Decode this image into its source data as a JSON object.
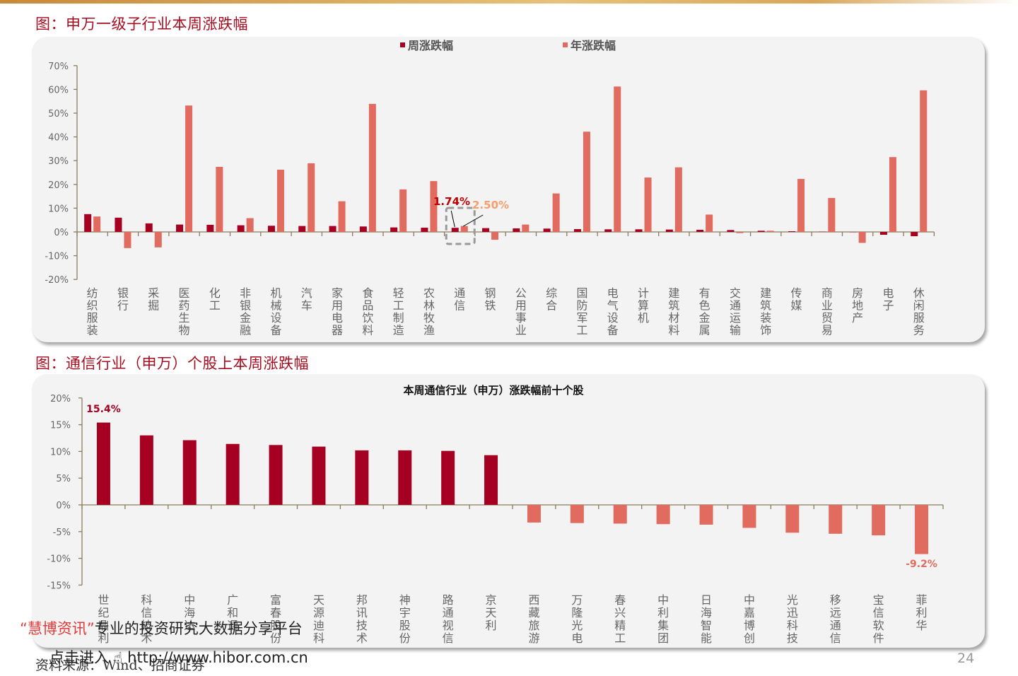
{
  "page": {
    "number": "24",
    "source": "资料来源：Wind、招商证券"
  },
  "watermark": {
    "quote_open": "“",
    "brand": "慧博资讯",
    "quote_close": "”",
    "tagline": "专业的投资研究大数据分享平台",
    "link_text": "点击进入 ☝ http://www.hibor.com.cn"
  },
  "figures": [
    {
      "title": "图：申万一级子行业本周涨跌幅"
    },
    {
      "title": "图：通信行业（申万）个股上本周涨跌幅"
    }
  ],
  "colors": {
    "weekly": "#a50021",
    "yearly": "#e06b5e",
    "title": "#a50d1f",
    "axis": "#8b7d5b",
    "panel": "#f3f3f3"
  },
  "chart_data": [
    {
      "type": "bar",
      "title": "申万一级子行业本周涨跌幅",
      "legend": [
        "周涨跌幅",
        "年涨跌幅"
      ],
      "legend_position": "top",
      "ylim": [
        -20,
        70
      ],
      "yticks": [
        "70%",
        "60%",
        "50%",
        "40%",
        "30%",
        "20%",
        "10%",
        "0%",
        "-10%",
        "-20%"
      ],
      "grid": false,
      "categories": [
        "纺织服装",
        "银行",
        "采掘",
        "医药生物",
        "化工",
        "非银金融",
        "机械设备",
        "汽车",
        "家用电器",
        "食品饮料",
        "轻工制造",
        "农林牧渔",
        "通信",
        "钢铁",
        "公用事业",
        "综合",
        "国防军工",
        "电气设备",
        "计算机",
        "建筑材料",
        "有色金属",
        "交通运输",
        "建筑装饰",
        "传媒",
        "商业贸易",
        "房地产",
        "电子",
        "休闲服务"
      ],
      "series": [
        {
          "name": "周涨跌幅",
          "values": [
            7.5,
            6.0,
            3.6,
            3.1,
            3.0,
            2.8,
            2.6,
            2.5,
            2.5,
            2.3,
            1.9,
            1.8,
            1.74,
            1.6,
            1.5,
            1.4,
            1.2,
            1.1,
            1.1,
            1.0,
            0.9,
            0.8,
            0.5,
            0.3,
            0.1,
            -0.1,
            -1.2,
            -1.8
          ]
        },
        {
          "name": "年涨跌幅",
          "values": [
            6.5,
            -6.8,
            -6.5,
            53.2,
            27.4,
            5.8,
            26.2,
            28.9,
            12.9,
            53.9,
            17.9,
            21.4,
            2.5,
            -3.3,
            3.1,
            16.2,
            42.2,
            61.2,
            22.9,
            27.2,
            7.3,
            -0.5,
            0.5,
            22.3,
            14.3,
            -4.6,
            31.5,
            59.6
          ]
        }
      ],
      "annotations": [
        {
          "category": "通信",
          "series": "周涨跌幅",
          "text": "1.74%",
          "color": "#c00000"
        },
        {
          "category": "通信",
          "series": "年涨跌幅",
          "text": "2.50%",
          "color": "#f79f6b"
        }
      ]
    },
    {
      "type": "bar",
      "title": "本周通信行业（申万）涨跌幅前十个股",
      "ylim": [
        -15,
        20
      ],
      "yticks": [
        "20%",
        "15%",
        "10%",
        "5%",
        "0%",
        "-5%",
        "-10%",
        "-15%"
      ],
      "grid": false,
      "categories": [
        "世纪鼎利",
        "科信技术",
        "中海达",
        "广和通",
        "富春股份",
        "天源迪科",
        "邦讯技术",
        "神宇股份",
        "路通视信",
        "京天利",
        "西藏旅游",
        "万隆光电",
        "春兴精工",
        "中利集团",
        "日海智能",
        "中嘉博创",
        "光迅科技",
        "移远通信",
        "宝信软件",
        "菲利华"
      ],
      "series": [
        {
          "name": "涨跌幅",
          "values": [
            15.4,
            13.0,
            12.1,
            11.4,
            11.2,
            10.9,
            10.2,
            10.2,
            10.1,
            9.3,
            -3.3,
            -3.4,
            -3.5,
            -3.6,
            -3.7,
            -4.3,
            -5.2,
            -5.4,
            -5.7,
            -9.2
          ]
        }
      ],
      "annotations": [
        {
          "category": "世纪鼎利",
          "text": "15.4%",
          "color": "#a50021"
        },
        {
          "category": "菲利华",
          "text": "-9.2%",
          "color": "#e06b5e"
        }
      ]
    }
  ]
}
